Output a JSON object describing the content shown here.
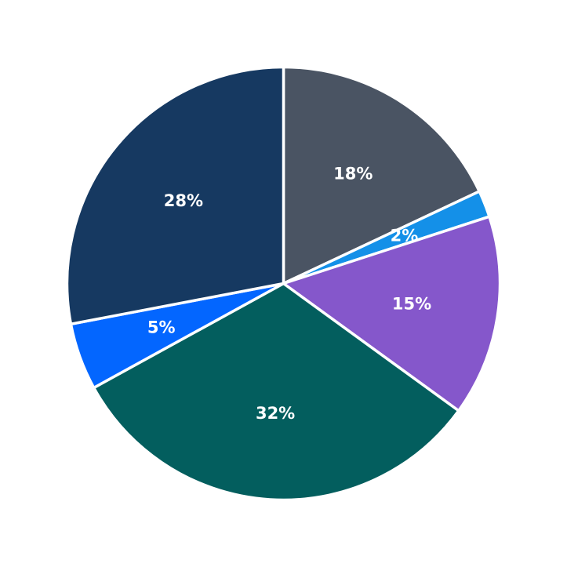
{
  "chart_data": {
    "type": "pie",
    "title": "",
    "start_angle_deg": 90,
    "direction": "clockwise",
    "legend": "none",
    "slices": [
      {
        "value": 18,
        "label": "18%",
        "color": "#4A5463"
      },
      {
        "value": 2,
        "label": "2%",
        "color": "#1490E8"
      },
      {
        "value": 15,
        "label": "15%",
        "color": "#8557CB"
      },
      {
        "value": 32,
        "label": "32%",
        "color": "#035E5E"
      },
      {
        "value": 5,
        "label": "5%",
        "color": "#0366FF"
      },
      {
        "value": 28,
        "label": "28%",
        "color": "#163961"
      }
    ]
  }
}
